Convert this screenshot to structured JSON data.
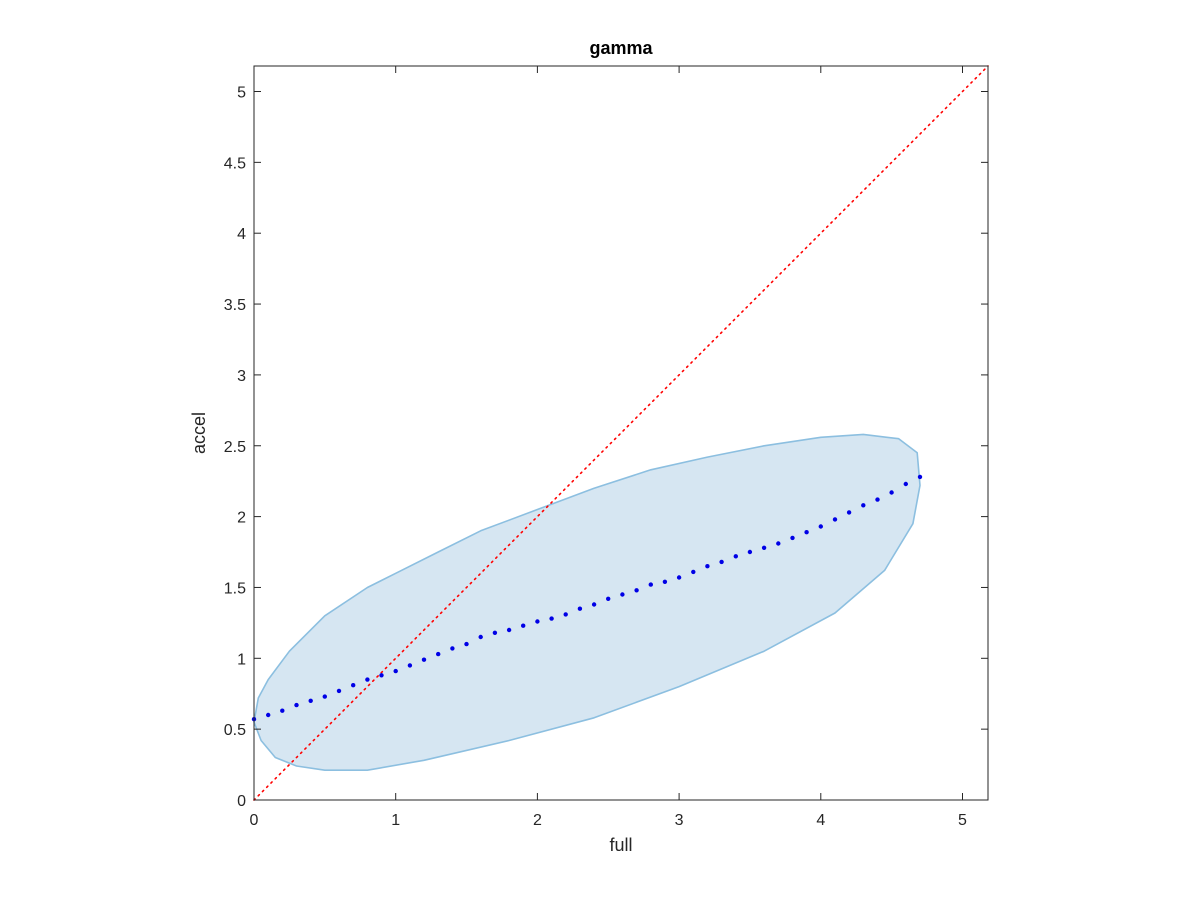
{
  "chart_data": {
    "type": "scatter",
    "title": "gamma",
    "xlabel": "full",
    "ylabel": "accel",
    "xlim": [
      0,
      5.18
    ],
    "ylim": [
      0,
      5.18
    ],
    "xticks": [
      0,
      1,
      2,
      3,
      4,
      5
    ],
    "yticks": [
      0,
      0.5,
      1,
      1.5,
      2,
      2.5,
      3,
      3.5,
      4,
      4.5,
      5
    ],
    "xtick_labels": [
      "0",
      "1",
      "2",
      "3",
      "4",
      "5"
    ],
    "ytick_labels": [
      "0",
      "0.5",
      "1",
      "1.5",
      "2",
      "2.5",
      "3",
      "3.5",
      "4",
      "4.5",
      "5"
    ],
    "grid": false,
    "colors": {
      "points": "#0000e6",
      "region_fill": "#d6e6f2",
      "region_stroke": "#8cbfe0",
      "identity_line": "#ff0000",
      "axes": "#262626"
    },
    "identity_line": {
      "x": [
        0,
        5.18
      ],
      "y": [
        0,
        5.18
      ],
      "style": "dotted"
    },
    "region": {
      "x": [
        0.0,
        0.03,
        0.1,
        0.25,
        0.5,
        0.8,
        1.0,
        1.3,
        1.6,
        2.0,
        2.4,
        2.8,
        3.2,
        3.6,
        4.0,
        4.3,
        4.55,
        4.68,
        4.7,
        4.65,
        4.45,
        4.1,
        3.6,
        3.0,
        2.4,
        1.8,
        1.2,
        0.8,
        0.5,
        0.3,
        0.15,
        0.05,
        0.0
      ],
      "y": [
        0.55,
        0.72,
        0.85,
        1.05,
        1.3,
        1.5,
        1.6,
        1.75,
        1.9,
        2.05,
        2.2,
        2.33,
        2.42,
        2.5,
        2.56,
        2.58,
        2.55,
        2.45,
        2.22,
        1.95,
        1.62,
        1.32,
        1.05,
        0.8,
        0.58,
        0.42,
        0.28,
        0.21,
        0.21,
        0.24,
        0.3,
        0.42,
        0.55
      ]
    },
    "series": [
      {
        "x": [
          0.0,
          0.1,
          0.2,
          0.3,
          0.4,
          0.5,
          0.6,
          0.7,
          0.8,
          0.9,
          1.0,
          1.1,
          1.2,
          1.3,
          1.4,
          1.5,
          1.6,
          1.7,
          1.8,
          1.9,
          2.0,
          2.1,
          2.2,
          2.3,
          2.4,
          2.5,
          2.6,
          2.7,
          2.8,
          2.9,
          3.0,
          3.1,
          3.2,
          3.3,
          3.4,
          3.5,
          3.6,
          3.7,
          3.8,
          3.9,
          4.0,
          4.1,
          4.2,
          4.3,
          4.4,
          4.5,
          4.6,
          4.7
        ],
        "y": [
          0.57,
          0.6,
          0.63,
          0.67,
          0.7,
          0.73,
          0.77,
          0.81,
          0.85,
          0.88,
          0.91,
          0.95,
          0.99,
          1.03,
          1.07,
          1.1,
          1.15,
          1.18,
          1.2,
          1.23,
          1.26,
          1.28,
          1.31,
          1.35,
          1.38,
          1.42,
          1.45,
          1.48,
          1.52,
          1.54,
          1.57,
          1.61,
          1.65,
          1.68,
          1.72,
          1.75,
          1.78,
          1.81,
          1.85,
          1.89,
          1.93,
          1.98,
          2.03,
          2.08,
          2.12,
          2.17,
          2.23,
          2.28
        ]
      }
    ]
  }
}
